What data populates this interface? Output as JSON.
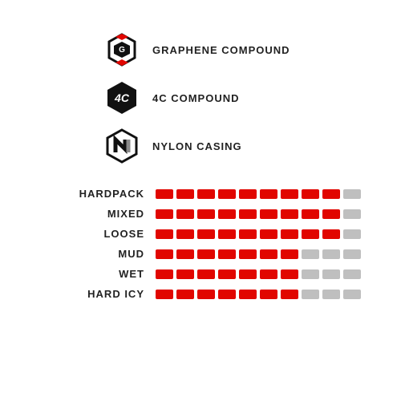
{
  "colors": {
    "background": "#ffffff",
    "text": "#222222",
    "segment_filled": "#e10600",
    "segment_empty": "#bfbfbf",
    "icon_primary": "#111111",
    "icon_accent_red": "#e10600",
    "icon_accent_gray": "#8a8a8a"
  },
  "typography": {
    "label_fontsize": 13,
    "label_weight": 700,
    "letter_spacing": 1
  },
  "features": [
    {
      "label": "GRAPHENE COMPOUND",
      "icon": "graphene"
    },
    {
      "label": "4C COMPOUND",
      "icon": "fourc"
    },
    {
      "label": "NYLON CASING",
      "icon": "nylon"
    }
  ],
  "ratings": {
    "segment_count": 10,
    "segment_width": 22,
    "segment_height": 12,
    "segment_gap": 4,
    "segment_radius": 2,
    "items": [
      {
        "label": "HARDPACK",
        "value": 9
      },
      {
        "label": "MIXED",
        "value": 9
      },
      {
        "label": "LOOSE",
        "value": 9
      },
      {
        "label": "MUD",
        "value": 7
      },
      {
        "label": "WET",
        "value": 7
      },
      {
        "label": "HARD ICY",
        "value": 7
      }
    ]
  }
}
